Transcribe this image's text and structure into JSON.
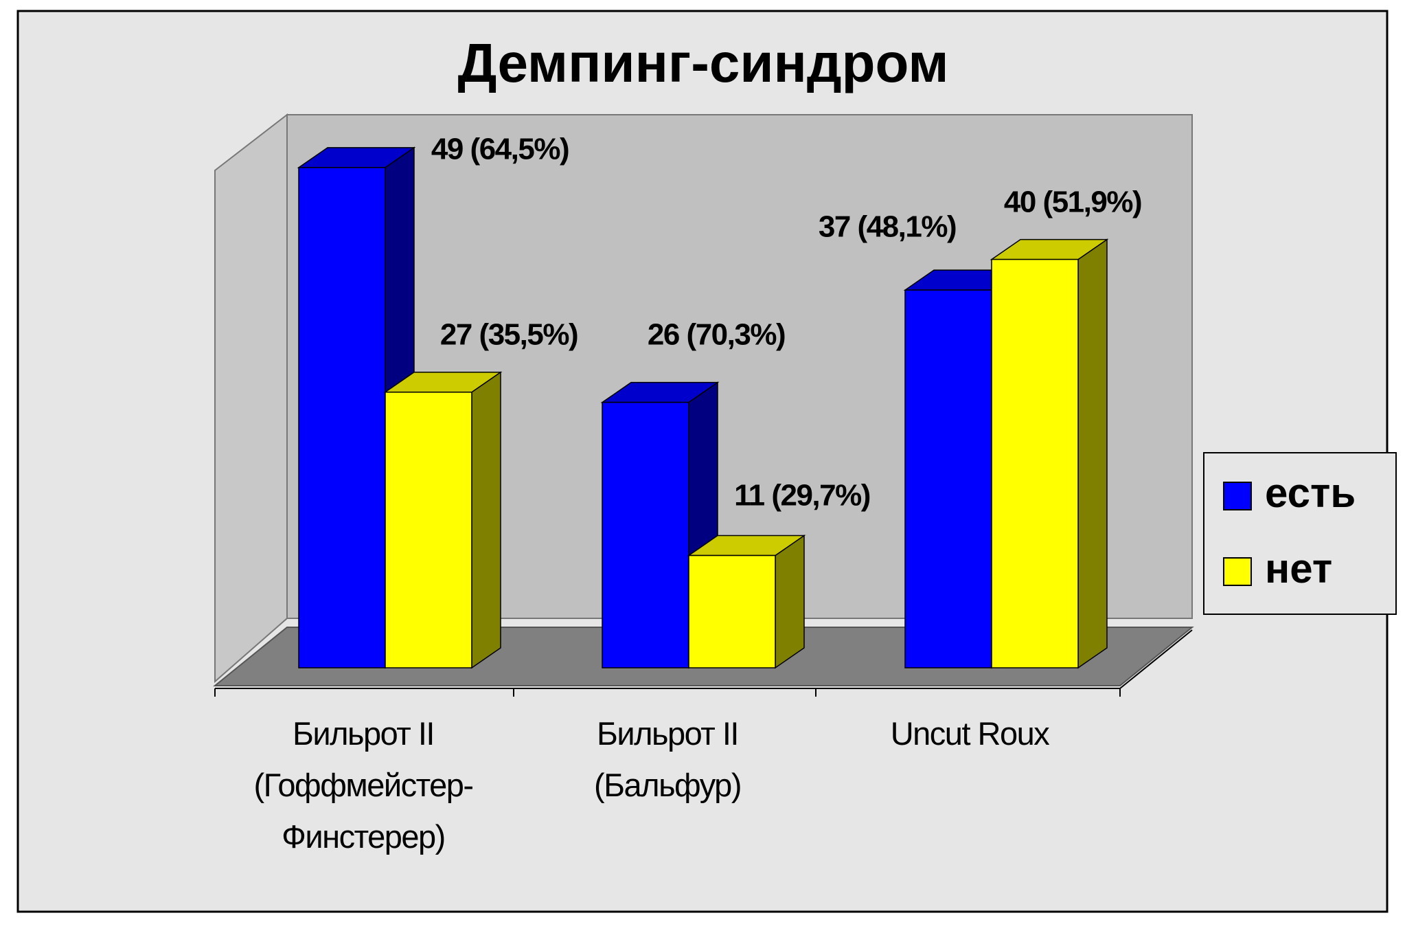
{
  "chart_data": {
    "type": "bar3d",
    "title": "Демпинг-синдром",
    "categories": [
      "Бильрот II\n(Гоффмейстер-\nФинстерер)",
      "Бильрот II\n(Бальфур)",
      "Uncut Roux"
    ],
    "series": [
      {
        "name": "есть",
        "color": "#0000ff",
        "values": [
          49,
          26,
          37
        ],
        "value_labels": [
          "49 (64,5%)",
          "26 (70,3%)",
          "37 (48,1%)"
        ]
      },
      {
        "name": "нет",
        "color": "#ffff00",
        "values": [
          27,
          11,
          40
        ],
        "value_labels": [
          "27 (35,5%)",
          "11 (29,7%)",
          "40 (51,9%)"
        ]
      }
    ],
    "legend": "right"
  }
}
